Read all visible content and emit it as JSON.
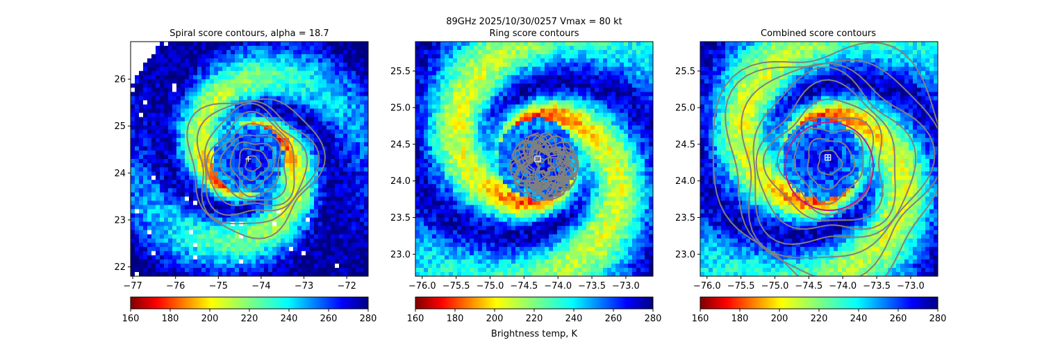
{
  "figure": {
    "suptitle_line1": "89GHz  2025/10/30/0257    Vmax = 80 kt",
    "colorbar_label": "Brightness temp, K"
  },
  "chart_data": [
    {
      "type": "heatmap",
      "title": "Spiral score contours, alpha = 18.7",
      "xlim": [
        -77.05,
        -71.5
      ],
      "ylim": [
        21.8,
        26.8
      ],
      "xticks": [
        -77,
        -76,
        -75,
        -74,
        -73,
        -72
      ],
      "yticks": [
        22,
        23,
        24,
        25,
        26
      ],
      "center_marker": {
        "symbol": "plus",
        "lon": -74.3,
        "lat": 24.3
      },
      "field": {
        "center_lon": -74.3,
        "center_lat": 24.3,
        "eye_radius_deg": 0.75,
        "spiral_arms": 2
      },
      "swath_edge": "upper-left corner outside swath (white)",
      "contours": {
        "color": "#808080",
        "shape": "concentric",
        "center_lon": -74.2,
        "center_lat": 24.2,
        "levels": 9
      },
      "colorbar": {
        "cmap": "jet_r",
        "vmin": 160,
        "vmax": 280,
        "ticks": [
          160,
          180,
          200,
          220,
          240,
          260,
          280
        ]
      }
    },
    {
      "type": "heatmap",
      "title": "Ring score contours",
      "xlim": [
        -76.1,
        -72.6
      ],
      "ylim": [
        22.7,
        25.9
      ],
      "xticks": [
        -76.0,
        -75.5,
        -75.0,
        -74.5,
        -74.0,
        -73.5,
        -73.0
      ],
      "yticks": [
        23.0,
        23.5,
        24.0,
        24.5,
        25.0,
        25.5
      ],
      "xticklabels": [
        "−76.0",
        "−75.5",
        "−75.0",
        "−74.5",
        "−74.0",
        "−73.5",
        "−73.0"
      ],
      "yticklabels": [
        "23.0",
        "23.5",
        "24.0",
        "24.5",
        "25.0",
        "25.5"
      ],
      "center_marker": {
        "symbol": "square",
        "lon": -74.3,
        "lat": 24.3
      },
      "field": {
        "center_lon": -74.3,
        "center_lat": 24.3,
        "eye_radius_deg": 0.55,
        "spiral_arms": 2
      },
      "contours": {
        "color": "#808080",
        "shape": "dense-disc",
        "center_lon": -74.2,
        "center_lat": 24.2,
        "radius_deg": 0.5
      },
      "colorbar": {
        "cmap": "jet_r",
        "vmin": 160,
        "vmax": 280,
        "ticks": [
          160,
          180,
          200,
          220,
          240,
          260,
          280
        ]
      }
    },
    {
      "type": "heatmap",
      "title": "Combined score contours",
      "xlim": [
        -76.1,
        -72.6
      ],
      "ylim": [
        22.7,
        25.9
      ],
      "xticks": [
        -76.0,
        -75.5,
        -75.0,
        -74.5,
        -74.0,
        -73.5,
        -73.0
      ],
      "yticks": [
        23.0,
        23.5,
        24.0,
        24.5,
        25.0,
        25.5
      ],
      "xticklabels": [
        "−76.0",
        "−75.5",
        "−75.0",
        "−74.5",
        "−74.0",
        "−73.5",
        "−73.0"
      ],
      "yticklabels": [
        "23.0",
        "23.5",
        "24.0",
        "24.5",
        "25.0",
        "25.5"
      ],
      "center_marker": {
        "symbol": "boxed-plus",
        "lon": -74.22,
        "lat": 24.32
      },
      "field": {
        "center_lon": -74.3,
        "center_lat": 24.3,
        "eye_radius_deg": 0.55,
        "spiral_arms": 2
      },
      "contours": {
        "color": "#808080",
        "shape": "concentric",
        "center_lon": -74.2,
        "center_lat": 24.25,
        "levels": 10
      },
      "fitted_ring": {
        "color": "#c8148c",
        "center_lon": -74.2,
        "center_lat": 24.2,
        "radius_deg": 0.65
      },
      "colorbar": {
        "cmap": "jet_r",
        "vmin": 160,
        "vmax": 280,
        "ticks": [
          160,
          180,
          200,
          220,
          240,
          260,
          280
        ]
      }
    }
  ],
  "colors": {
    "contour": "#808080",
    "ring": "#c8148c",
    "marker": "#ffffff",
    "missing": "#ffffff"
  }
}
